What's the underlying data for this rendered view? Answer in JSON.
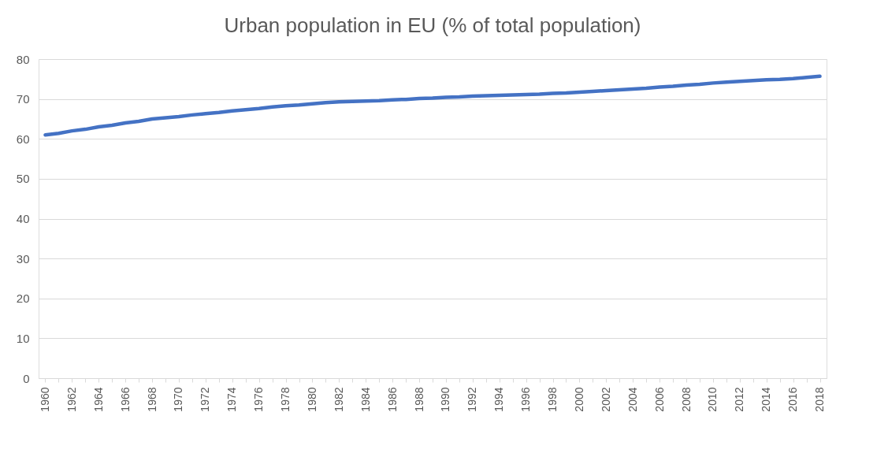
{
  "chart_data": {
    "type": "line",
    "title": "Urban population in EU (% of total population)",
    "categories": [
      "1960",
      null,
      "1962",
      null,
      "1964",
      null,
      "1966",
      null,
      "1968",
      null,
      "1970",
      null,
      "1972",
      null,
      "1974",
      null,
      "1976",
      null,
      "1978",
      null,
      "1980",
      null,
      "1982",
      null,
      "1984",
      null,
      "1986",
      null,
      "1988",
      null,
      "1990",
      null,
      "1992",
      null,
      "1994",
      null,
      "1996",
      null,
      "1998",
      null,
      "2000",
      null,
      "2002",
      null,
      "2004",
      null,
      "2006",
      null,
      "2008",
      null,
      "2010",
      null,
      "2012",
      null,
      "2014",
      null,
      "2016",
      null,
      "2018"
    ],
    "series": [
      {
        "color": "#4472c4",
        "values": [
          61.0,
          61.4,
          62.0,
          62.4,
          63.0,
          63.4,
          64.0,
          64.4,
          65.0,
          65.3,
          65.6,
          66.0,
          66.3,
          66.6,
          67.0,
          67.3,
          67.6,
          68.0,
          68.3,
          68.5,
          68.8,
          69.1,
          69.3,
          69.4,
          69.5,
          69.6,
          69.8,
          69.9,
          70.1,
          70.2,
          70.4,
          70.5,
          70.7,
          70.8,
          70.9,
          71.0,
          71.1,
          71.2,
          71.4,
          71.5,
          71.7,
          71.9,
          72.1,
          72.3,
          72.5,
          72.7,
          73.0,
          73.2,
          73.5,
          73.7,
          74.0,
          74.2,
          74.4,
          74.6,
          74.8,
          74.9,
          75.1,
          75.4,
          75.7
        ]
      }
    ],
    "ylim": [
      0,
      80
    ],
    "yticks": [
      0,
      10,
      20,
      30,
      40,
      50,
      60,
      70,
      80
    ],
    "grid": "y",
    "legend": false,
    "line_style": "solid",
    "marker": "none"
  }
}
